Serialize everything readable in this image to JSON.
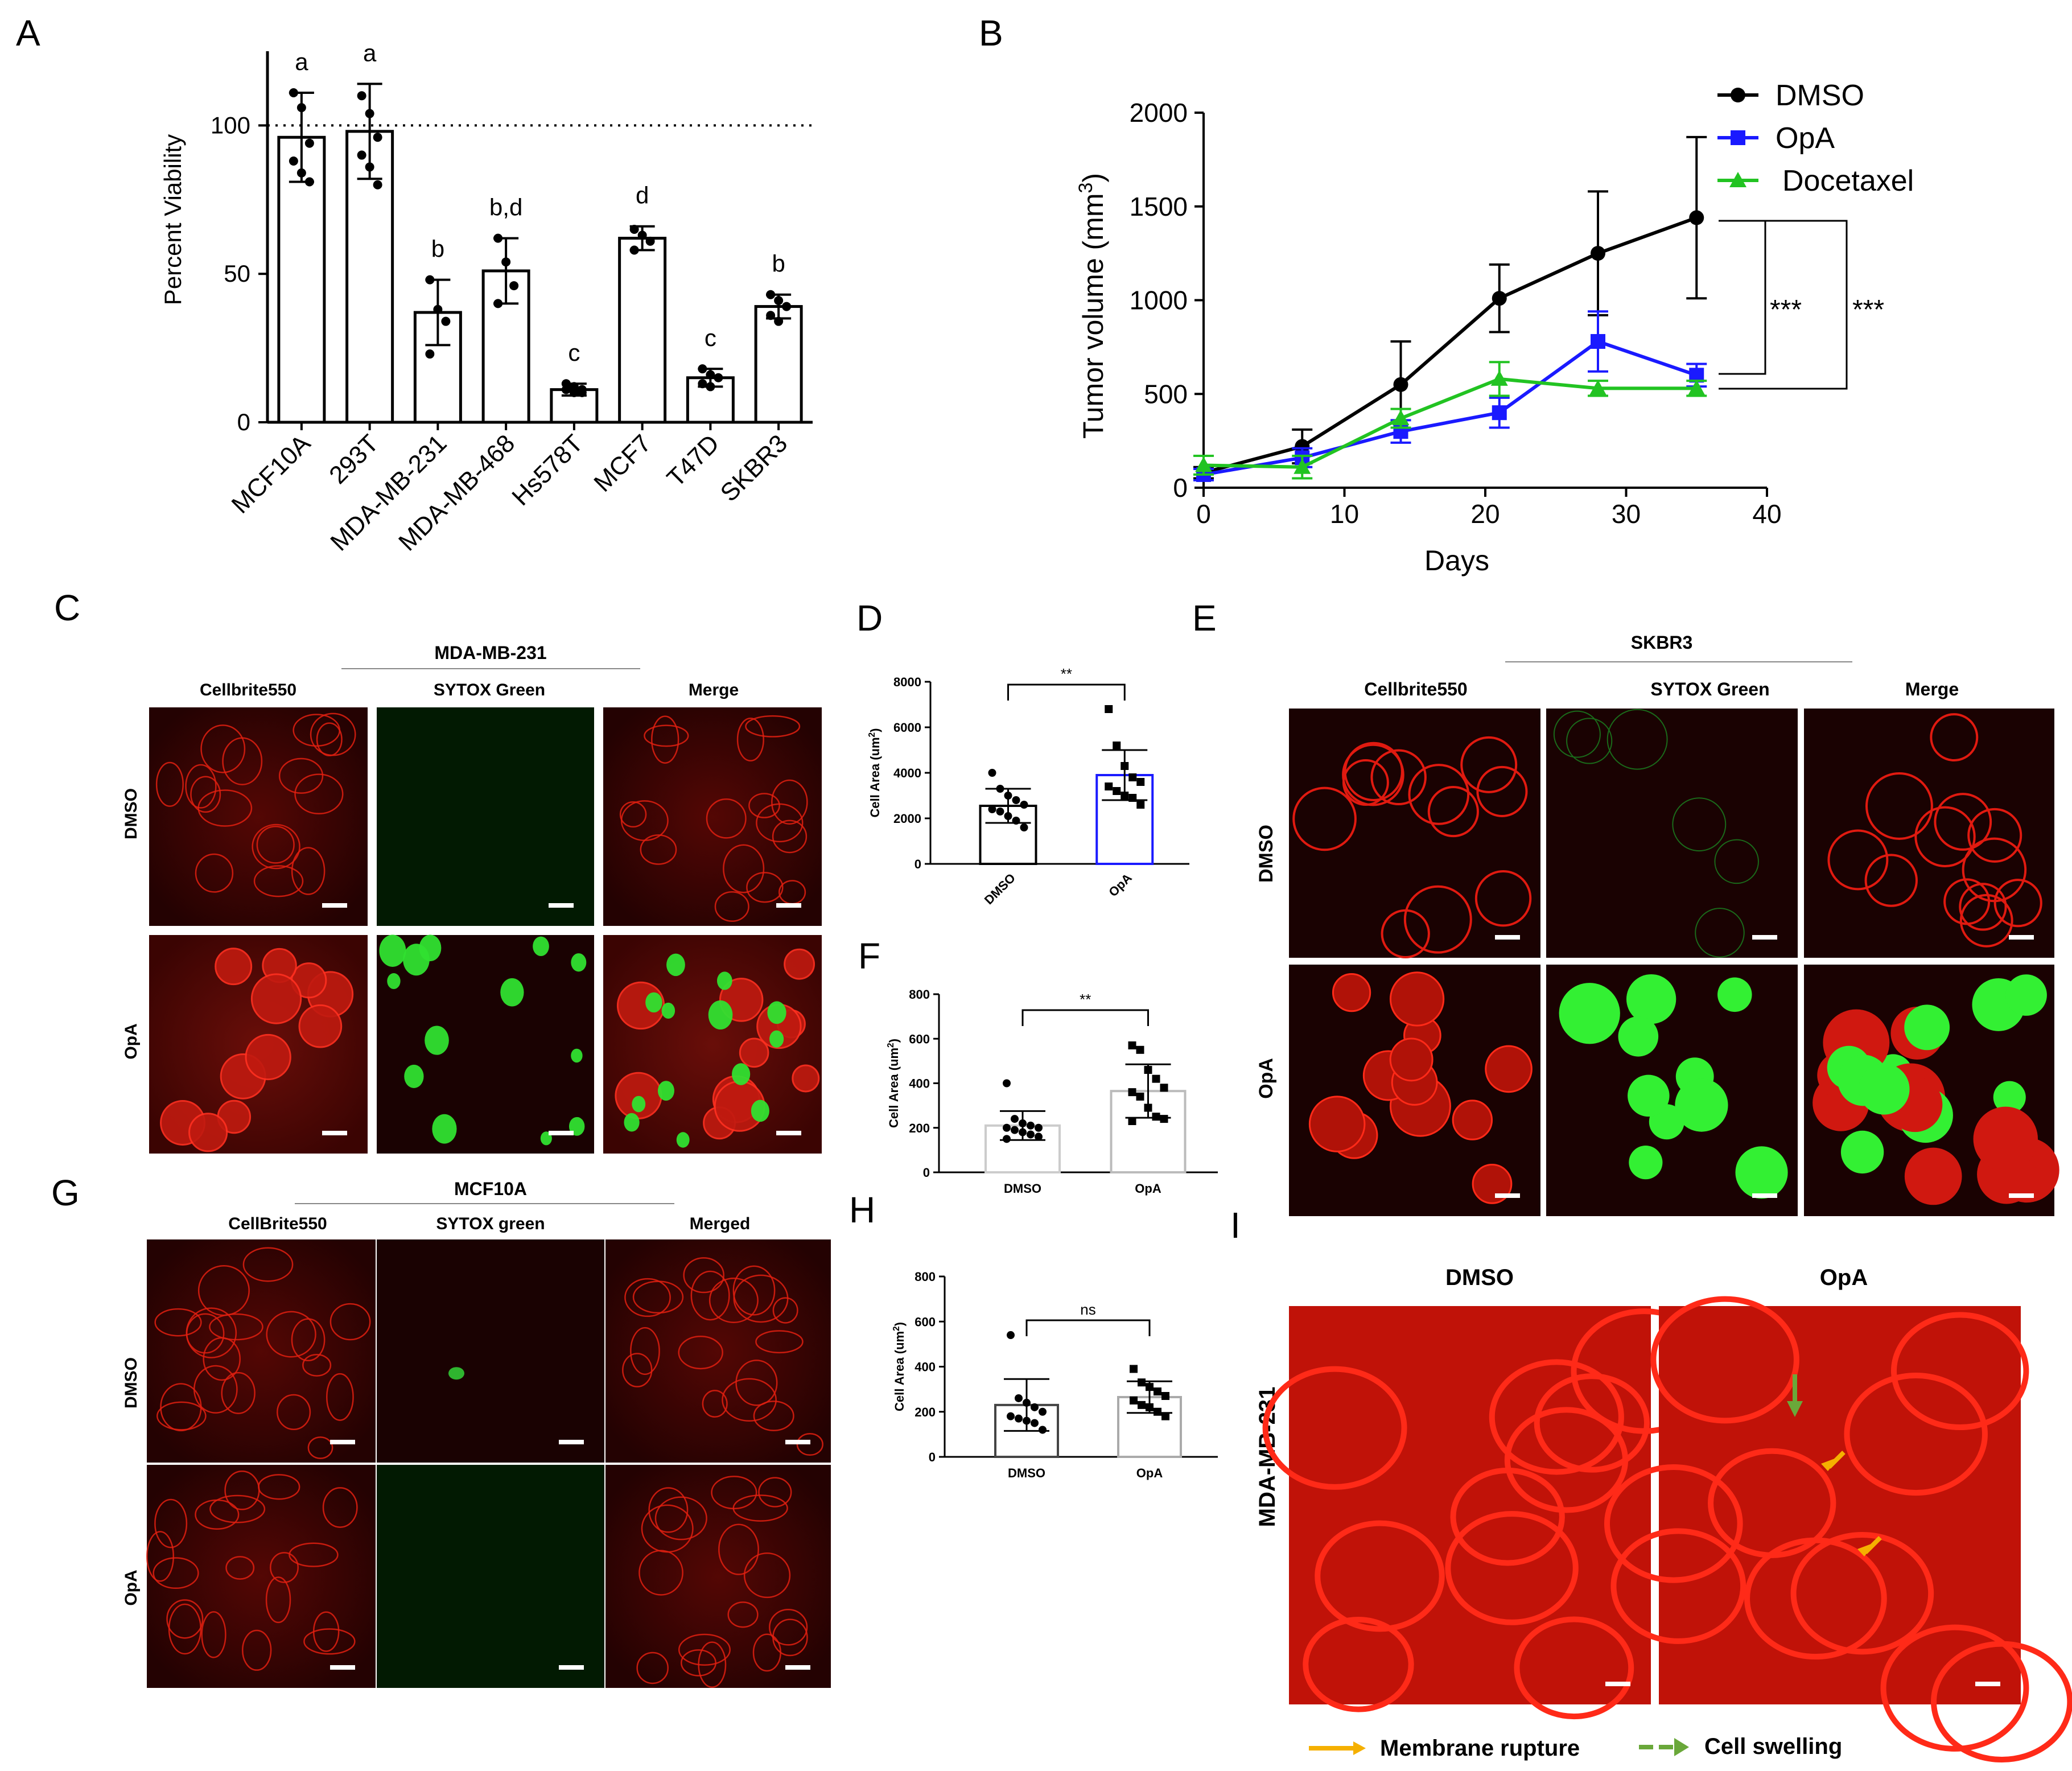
{
  "panels": {
    "A": {
      "letter": "A",
      "chart_data": {
        "type": "bar",
        "ylabel": "Percent Viability",
        "ylim": [
          0,
          125
        ],
        "yticks": [
          "0",
          "50",
          "100"
        ],
        "reference_line": 100,
        "categories": [
          "MCF10A",
          "293T",
          "MDA-MB-231",
          "MDA-MB-468",
          "Hs578T",
          "MCF7",
          "T47D",
          "SKBR3"
        ],
        "values": [
          96,
          98,
          37,
          51,
          11,
          62,
          15,
          39
        ],
        "errors": [
          15,
          16,
          11,
          11,
          2,
          4,
          3,
          4
        ],
        "letters": [
          "a",
          "a",
          "b",
          "b,d",
          "c",
          "d",
          "c",
          "b"
        ],
        "points": [
          [
            111,
            106,
            94,
            88,
            84,
            81
          ],
          [
            110,
            104,
            96,
            90,
            86,
            80
          ],
          [
            48,
            38,
            34,
            23
          ],
          [
            62,
            54,
            46,
            40
          ],
          [
            13,
            12,
            11,
            11,
            10,
            10
          ],
          [
            65,
            63,
            61,
            58
          ],
          [
            18,
            16,
            15,
            13,
            12
          ],
          [
            43,
            41,
            39,
            36,
            34
          ]
        ]
      }
    },
    "B": {
      "letter": "B",
      "chart_data": {
        "type": "line",
        "xlabel": "Days",
        "ylabel_main": "Tumor volume (mm",
        "ylabel_sup": "3",
        "ylabel_close": ")",
        "xlim": [
          0,
          40
        ],
        "ylim": [
          0,
          2000
        ],
        "xticks": [
          "0",
          "10",
          "20",
          "30",
          "40"
        ],
        "yticks": [
          "0",
          "500",
          "1000",
          "1500",
          "2000"
        ],
        "x": [
          0,
          7,
          14,
          21,
          28,
          35
        ],
        "series": [
          {
            "name": "DMSO",
            "color": "#000000",
            "marker": "circle",
            "values": [
              80,
              220,
              550,
              1010,
              1250,
              1440
            ],
            "errors": [
              30,
              90,
              230,
              180,
              330,
              430
            ]
          },
          {
            "name": "OpA",
            "color": "#1a1aff",
            "marker": "square",
            "values": [
              70,
              160,
              300,
              400,
              780,
              600
            ],
            "errors": [
              30,
              50,
              60,
              80,
              160,
              60
            ]
          },
          {
            "name": "Docetaxel",
            "color": "#22c322",
            "marker": "triangle",
            "values": [
              120,
              110,
              370,
              580,
              530,
              530
            ],
            "errors": [
              50,
              60,
              50,
              90,
              40,
              40
            ]
          }
        ],
        "significance": [
          "***",
          "***"
        ]
      }
    },
    "C": {
      "letter": "C",
      "cell_line": "MDA-MB-231",
      "columns": [
        "Cellbrite550",
        "SYTOX Green",
        "Merge"
      ],
      "rows": [
        "DMSO",
        "OpA"
      ]
    },
    "D": {
      "letter": "D",
      "chart_data": {
        "type": "bar",
        "ylabel_main": "Cell Area (um",
        "ylabel_sup": "2",
        "ylabel_close": ")",
        "ylim": [
          0,
          8000
        ],
        "yticks": [
          "0",
          "2000",
          "4000",
          "6000",
          "8000"
        ],
        "categories": [
          "DMSO",
          "OpA"
        ],
        "values": [
          2550,
          3900
        ],
        "errors": [
          750,
          1100
        ],
        "bar_colors": [
          "#000000",
          "#1a1aff"
        ],
        "significance": "**",
        "points": [
          [
            4000,
            3300,
            3000,
            2800,
            2600,
            2400,
            2300,
            2100,
            1900,
            1600
          ],
          [
            6800,
            5200,
            4300,
            3800,
            3600,
            3400,
            3200,
            3000,
            2900,
            2600
          ]
        ]
      }
    },
    "E": {
      "letter": "E",
      "cell_line": "SKBR3",
      "columns": [
        "Cellbrite550",
        "SYTOX Green",
        "Merge"
      ],
      "rows": [
        "DMSO",
        "OpA"
      ]
    },
    "F": {
      "letter": "F",
      "chart_data": {
        "type": "bar",
        "ylabel_main": "Cell Area (um",
        "ylabel_sup": "2",
        "ylabel_close": ")",
        "ylim": [
          0,
          800
        ],
        "yticks": [
          "0",
          "200",
          "400",
          "600",
          "800"
        ],
        "categories": [
          "DMSO",
          "OpA"
        ],
        "values": [
          210,
          365
        ],
        "errors": [
          65,
          120
        ],
        "bar_colors": [
          "#cccccc",
          "#bbbbbb"
        ],
        "significance": "**",
        "points": [
          [
            400,
            240,
            220,
            210,
            200,
            200,
            190,
            180,
            170,
            160,
            150
          ],
          [
            570,
            550,
            460,
            420,
            380,
            360,
            340,
            290,
            250,
            240,
            230
          ]
        ]
      }
    },
    "G": {
      "letter": "G",
      "cell_line": "MCF10A",
      "columns": [
        "CellBrite550",
        "SYTOX green",
        "Merged"
      ],
      "rows": [
        "DMSO",
        "OpA"
      ]
    },
    "H": {
      "letter": "H",
      "chart_data": {
        "type": "bar",
        "ylabel_main": "Cell Area (um",
        "ylabel_sup": "2",
        "ylabel_close": ")",
        "ylim": [
          0,
          800
        ],
        "yticks": [
          "0",
          "200",
          "400",
          "600",
          "800"
        ],
        "categories": [
          "DMSO",
          "OpA"
        ],
        "values": [
          230,
          265
        ],
        "errors": [
          115,
          70
        ],
        "bar_colors": [
          "#444444",
          "#aaaaaa"
        ],
        "significance": "ns",
        "points": [
          [
            540,
            260,
            240,
            220,
            200,
            180,
            170,
            160,
            150,
            120
          ],
          [
            390,
            330,
            310,
            290,
            270,
            250,
            230,
            220,
            200,
            180
          ]
        ]
      }
    },
    "I": {
      "letter": "I",
      "cell_line": "MDA-MB-231",
      "columns": [
        "DMSO",
        "OpA"
      ],
      "legend": [
        {
          "label": "Membrane rupture",
          "color": "#f5b000"
        },
        {
          "label": "Cell swelling",
          "color": "#6aa83a"
        }
      ]
    }
  }
}
